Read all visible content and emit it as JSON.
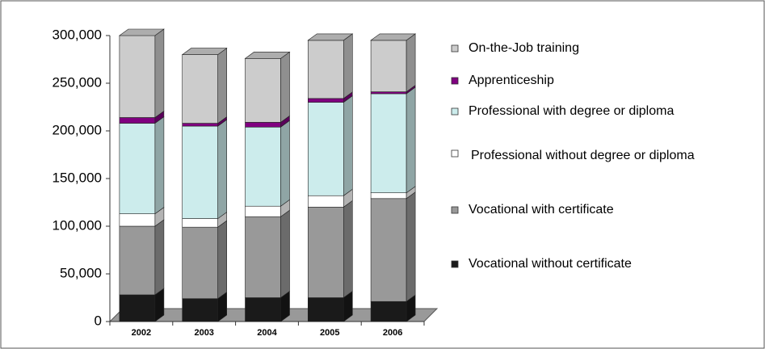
{
  "chart_data": {
    "type": "bar3d_stacked",
    "categories": [
      "2002",
      "2003",
      "2004",
      "2005",
      "2006"
    ],
    "series": [
      {
        "name": "Vocational without certificate",
        "color": "#1a1a1a",
        "values": [
          28000,
          24000,
          25000,
          25000,
          21000
        ]
      },
      {
        "name": "Vocational with certificate",
        "color": "#999999",
        "values": [
          72000,
          75000,
          85000,
          95000,
          108000
        ]
      },
      {
        "name": "Professional without degree or diploma",
        "color": "#ffffff",
        "values": [
          13000,
          9000,
          11000,
          12000,
          6000
        ]
      },
      {
        "name": "Professional with degree or diploma",
        "color": "#ccecec",
        "values": [
          95000,
          97000,
          83000,
          98000,
          104000
        ]
      },
      {
        "name": "Apprenticeship",
        "color": "#800080",
        "values": [
          6000,
          3000,
          5000,
          4000,
          2000
        ]
      },
      {
        "name": "On-the-Job training",
        "color": "#cccccc",
        "values": [
          86000,
          72000,
          67000,
          61000,
          54000
        ]
      }
    ],
    "ylim": [
      0,
      300000
    ],
    "yticks": [
      0,
      {
        "value": 50000,
        "label": "50,000"
      },
      {
        "value": 100000,
        "label": "100,000"
      },
      {
        "value": 150000,
        "label": "150,000"
      },
      {
        "value": 200000,
        "label": "200,000"
      },
      {
        "value": 250000,
        "label": "250,000"
      },
      {
        "value": 300000,
        "label": "300,000"
      }
    ],
    "legend": "right"
  }
}
